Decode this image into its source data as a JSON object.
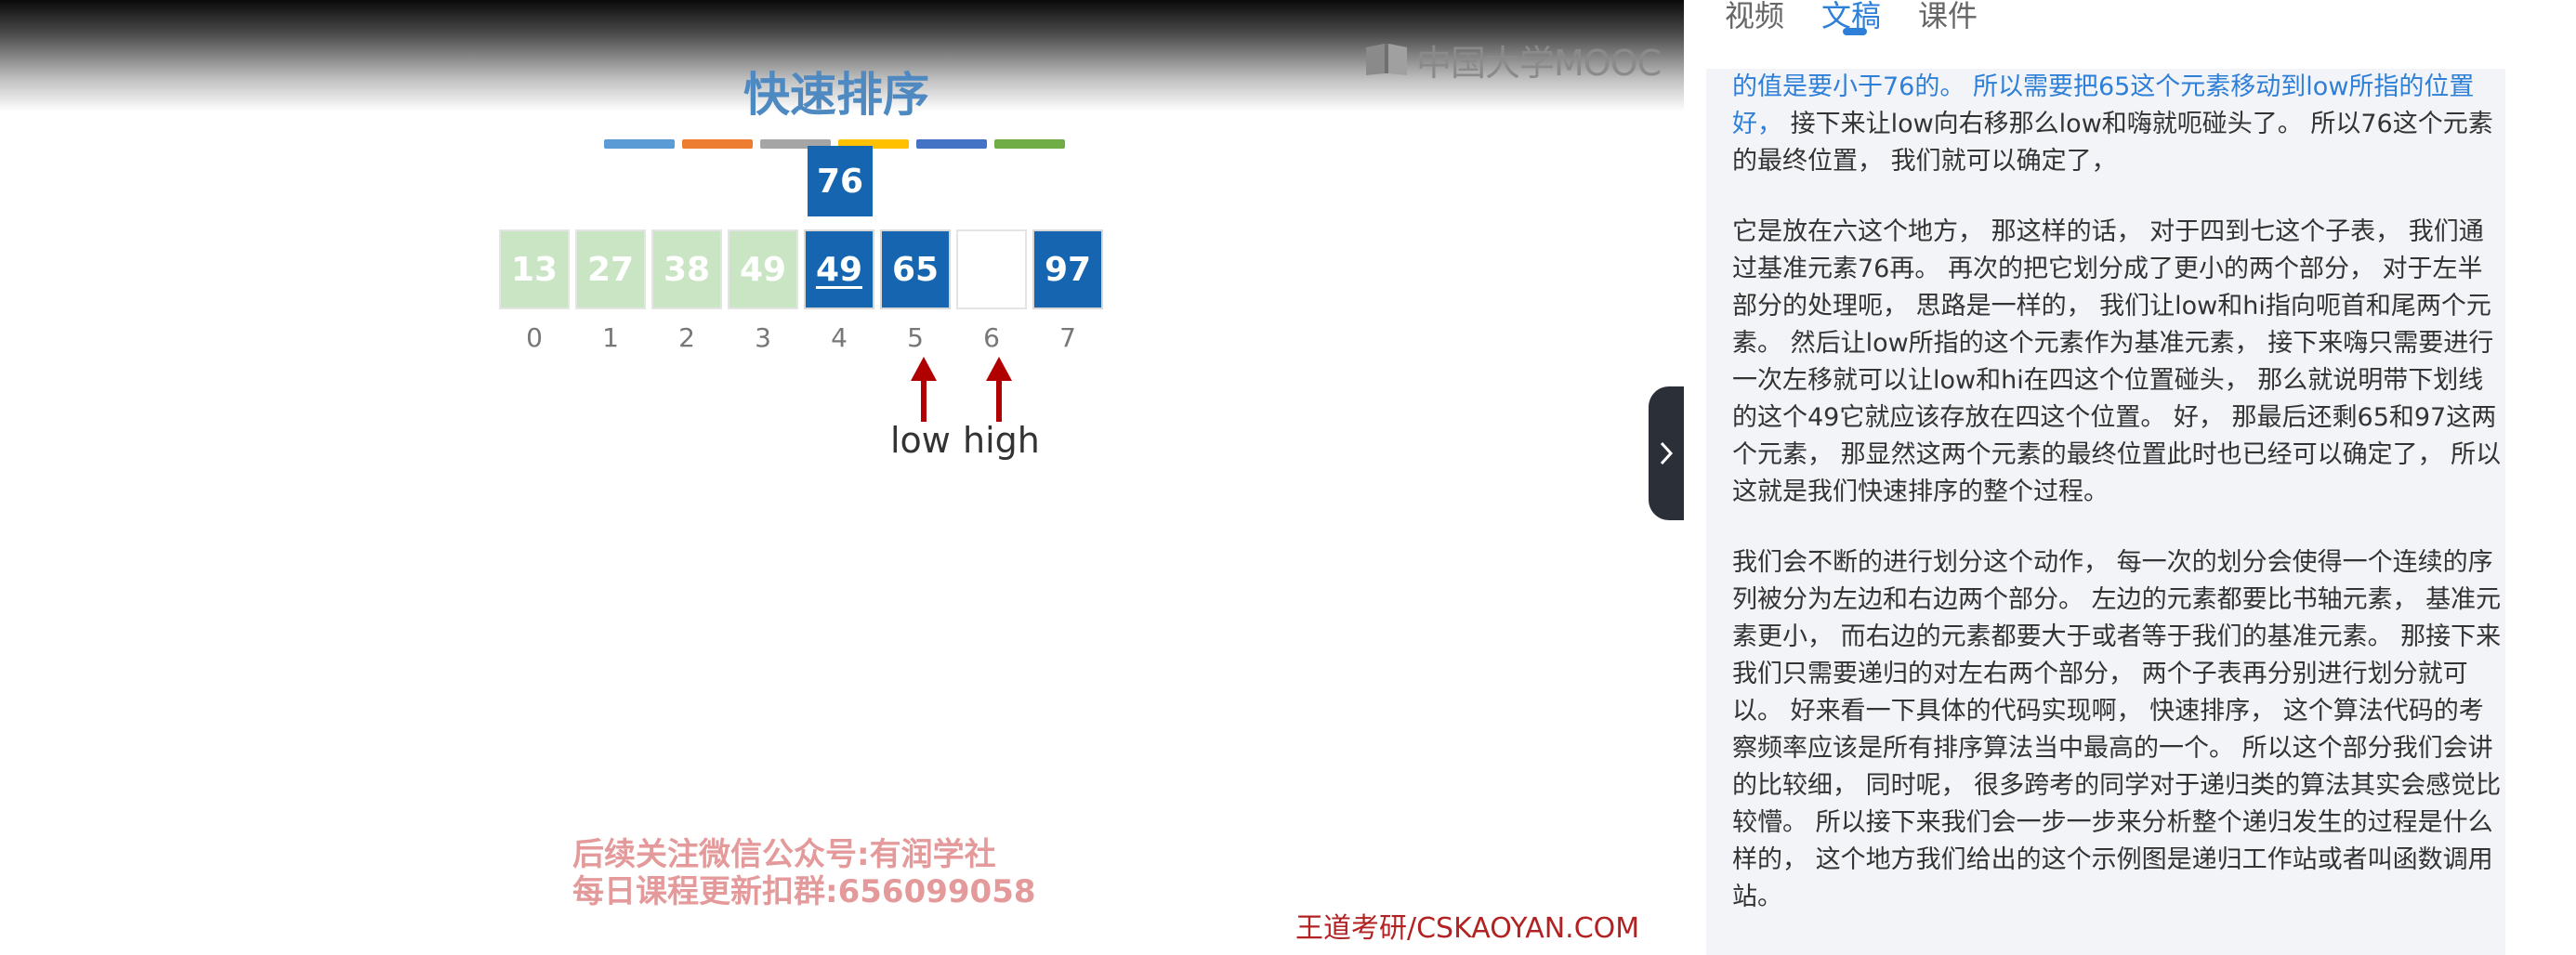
{
  "video": {
    "brand": "中国大学MOOC",
    "slide_title": "快速排序",
    "strip_colors": [
      "#5b9bd5",
      "#ed7d31",
      "#a5a5a5",
      "#ffc000",
      "#4472c4",
      "#70ad47"
    ],
    "pivot_value": "76",
    "cells": [
      {
        "value": "13",
        "style": "light"
      },
      {
        "value": "27",
        "style": "light"
      },
      {
        "value": "38",
        "style": "light"
      },
      {
        "value": "49",
        "style": "light"
      },
      {
        "value": "49",
        "style": "dark",
        "underlined": true
      },
      {
        "value": "65",
        "style": "dark"
      },
      {
        "value": "",
        "style": "empty"
      },
      {
        "value": "97",
        "style": "dark"
      }
    ],
    "indices": [
      "0",
      "1",
      "2",
      "3",
      "4",
      "5",
      "6",
      "7"
    ],
    "pointer_low": "low",
    "pointer_high": "high",
    "arrow_color": "#b00000",
    "promo_line1": "后续关注微信公众号:有润学社",
    "promo_line2": "每日课程更新扣群:656099058",
    "watermark": "王道考研/CSKAOYAN.COM"
  },
  "panel": {
    "tabs": [
      {
        "label": "视频",
        "active": false
      },
      {
        "label": "文稿",
        "active": true
      },
      {
        "label": "课件",
        "active": false
      }
    ],
    "para1_highlight": "的值是要小于76的。 所以需要把65这个元素移动到low所指的位置好，",
    "para1_rest": " 接下来让low向右移那么low和嗨就呃碰头了。 所以76这个元素的最终位置， 我们就可以确定了，",
    "para2": "它是放在六这个地方， 那这样的话， 对于四到七这个子表， 我们通过基准元素76再。 再次的把它划分成了更小的两个部分， 对于左半部分的处理呃， 思路是一样的， 我们让low和hi指向呃首和尾两个元素。 然后让low所指的这个元素作为基准元素， 接下来嗨只需要进行一次左移就可以让low和hi在四这个位置碰头， 那么就说明带下划线的这个49它就应该存放在四这个位置。 好， 那最后还剩65和97这两个元素， 那显然这两个元素的最终位置此时也已经可以确定了， 所以这就是我们快速排序的整个过程。",
    "para3": "我们会不断的进行划分这个动作， 每一次的划分会使得一个连续的序列被分为左边和右边两个部分。 左边的元素都要比书轴元素， 基准元素更小， 而右边的元素都要大于或者等于我们的基准元素。 那接下来我们只需要递归的对左右两个部分， 两个子表再分别进行划分就可以。 好来看一下具体的代码实现啊， 快速排序， 这个算法代码的考察频率应该是所有排序算法当中最高的一个。 所以这个部分我们会讲的比较细， 同时呢， 很多跨考的同学对于递归类的算法其实会感觉比较懵。 所以接下来我们会一步一步来分析整个递归发生的过程是什么样的， 这个地方我们给出的这个示例图是递归工作站或者叫函数调用站。"
  }
}
